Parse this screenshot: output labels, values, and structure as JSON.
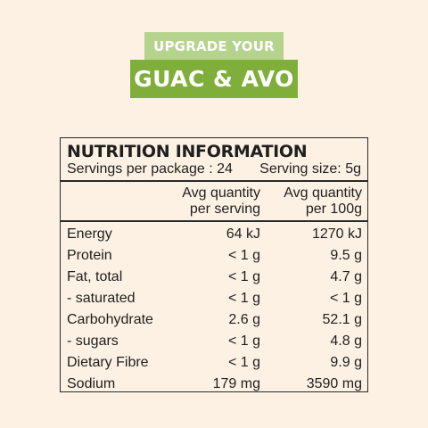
{
  "banner": {
    "line1": "UPGRADE YOUR",
    "line2": "GUAC & AVO"
  },
  "panel": {
    "title": "NUTRITION INFORMATION",
    "servings": "Servings per package : 24",
    "serving_size": "Serving size: 5g",
    "col1_header_a": "Avg quantity",
    "col1_header_b": "per serving",
    "col2_header_a": "Avg quantity",
    "col2_header_b": "per 100g",
    "rows": [
      {
        "label": "Energy",
        "per_serving": "64 kJ",
        "per_100g": "1270 kJ"
      },
      {
        "label": "Protein",
        "per_serving": "< 1 g",
        "per_100g": "9.5 g"
      },
      {
        "label": "Fat, total",
        "per_serving": "< 1 g",
        "per_100g": "4.7 g"
      },
      {
        "label": "- saturated",
        "per_serving": "< 1 g",
        "per_100g": "< 1 g"
      },
      {
        "label": "Carbohydrate",
        "per_serving": "2.6 g",
        "per_100g": "52.1 g"
      },
      {
        "label": "- sugars",
        "per_serving": "< 1 g",
        "per_100g": "4.8 g"
      },
      {
        "label": "Dietary Fibre",
        "per_serving": "< 1 g",
        "per_100g": "9.9 g"
      },
      {
        "label": "Sodium",
        "per_serving": "179 mg",
        "per_100g": "3590 mg"
      }
    ]
  },
  "colors": {
    "background": "#fcf1e3",
    "banner_light_green": "#b5d38c",
    "banner_dark_green": "#7faf3a",
    "text": "#1f1f1f"
  }
}
